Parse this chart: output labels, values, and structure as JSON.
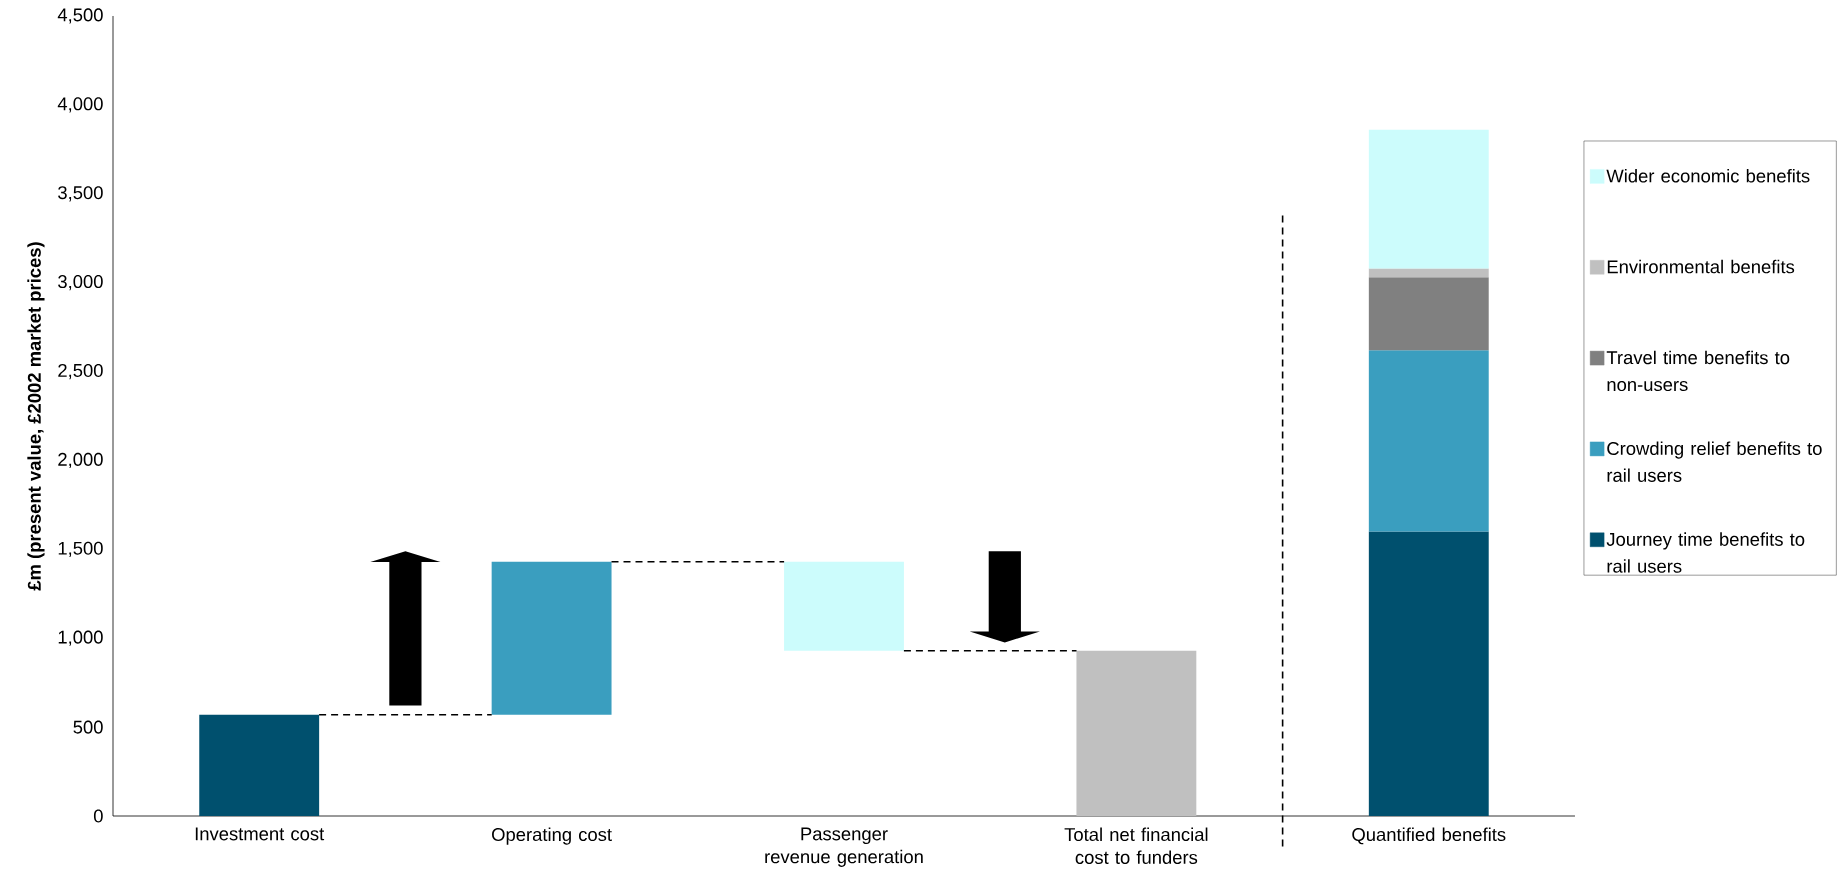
{
  "chart_data": {
    "type": "bar",
    "ylabel": "£m (present value, £2002 market prices)",
    "categories": [
      "Investment cost",
      "Operating cost",
      "Passenger revenue generation",
      "Total net financial cost to funders",
      "Quantified benefits"
    ],
    "ylim": [
      0,
      4500
    ],
    "yticks": [
      0,
      500,
      {
        "value": 1000,
        "label": "1,000"
      },
      {
        "value": 1500,
        "label": "1,500"
      },
      {
        "value": 2000,
        "label": "2,000"
      },
      {
        "value": 2500,
        "label": "2,500"
      },
      {
        "value": 3000,
        "label": "3,000"
      },
      {
        "value": 3500,
        "label": "3,500"
      },
      {
        "value": 4000,
        "label": "4,000"
      },
      {
        "value": 4500,
        "label": "4,500"
      }
    ],
    "stacked": true,
    "legend": "right",
    "series": [
      {
        "colors": [
          "#00506e",
          "#3a9ebf",
          "#ccfcfc",
          "#c0c0c0",
          null
        ],
        "base": [
          0,
          570,
          930,
          0,
          null
        ],
        "values": [
          570,
          860,
          500,
          930,
          null
        ]
      },
      {
        "name": "Journey time benefits to rail users",
        "color": "#00506e",
        "values": [
          null,
          null,
          null,
          null,
          1600
        ]
      },
      {
        "name": "Crowding relief benefits to rail users",
        "color": "#3a9ebf",
        "values": [
          null,
          null,
          null,
          null,
          1020
        ]
      },
      {
        "name": "Travel time benefits to non-users",
        "color": "#808080",
        "values": [
          null,
          null,
          null,
          null,
          410
        ]
      },
      {
        "name": "Environmental benefits",
        "color": "#c0c0c0",
        "values": [
          null,
          null,
          null,
          null,
          50
        ]
      },
      {
        "name": "Wider economic benefits",
        "color": "#ccfcfc",
        "values": [
          null,
          null,
          null,
          null,
          780
        ]
      }
    ]
  }
}
